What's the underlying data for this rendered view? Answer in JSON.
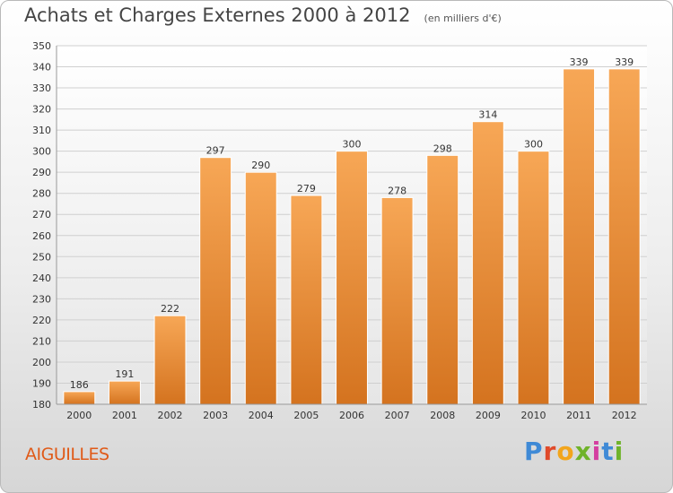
{
  "chart_data": {
    "type": "bar",
    "title": "Achats et Charges Externes 2000 à 2012",
    "subtitle": "(en milliers d'€)",
    "categories": [
      "2000",
      "2001",
      "2002",
      "2003",
      "2004",
      "2005",
      "2006",
      "2007",
      "2008",
      "2009",
      "2010",
      "2011",
      "2012"
    ],
    "values": [
      186,
      191,
      222,
      297,
      290,
      279,
      300,
      278,
      298,
      314,
      300,
      339,
      339
    ],
    "ylim": [
      180,
      350
    ],
    "yticks": [
      180,
      190,
      200,
      210,
      220,
      230,
      240,
      250,
      260,
      270,
      280,
      290,
      300,
      310,
      320,
      330,
      340,
      350
    ],
    "grid": true,
    "bar_color": "#f09a45",
    "bar_color_dark": "#d9772a"
  },
  "footer": {
    "commune": "AIGUILLES"
  },
  "logo": {
    "letters": [
      "P",
      "r",
      "o",
      "x",
      "i",
      "t",
      "i"
    ]
  }
}
